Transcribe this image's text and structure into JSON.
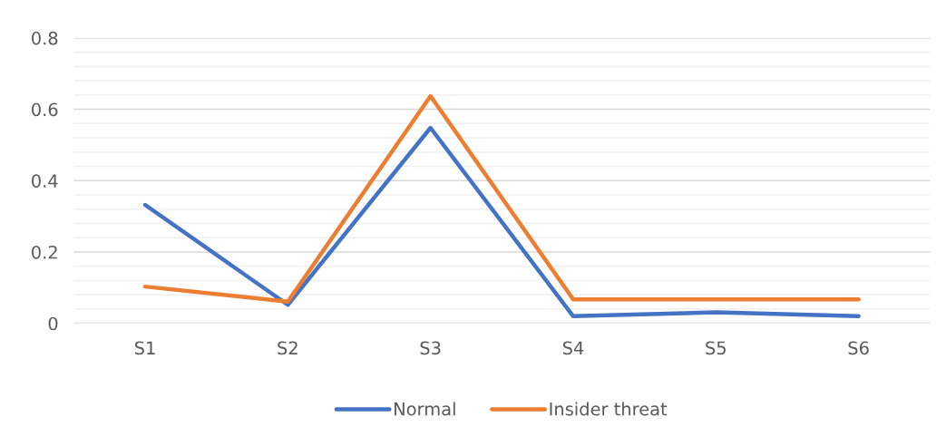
{
  "chart_data": {
    "type": "line",
    "categories": [
      "S1",
      "S2",
      "S3",
      "S4",
      "S5",
      "S6"
    ],
    "series": [
      {
        "name": "Normal",
        "color": "#4472c4",
        "values": [
          0.332,
          0.052,
          0.548,
          0.02,
          0.031,
          0.02
        ]
      },
      {
        "name": "Insider threat",
        "color": "#ed7d31",
        "values": [
          0.103,
          0.061,
          0.637,
          0.067,
          0.067,
          0.067
        ]
      }
    ],
    "ylim": [
      0,
      0.8
    ],
    "yticks": [
      0,
      {
        "value": 0.04,
        "label": null
      },
      {
        "value": 0.08,
        "label": null
      },
      {
        "value": 0.12,
        "label": null
      },
      {
        "value": 0.16,
        "label": null
      },
      {
        "value": 0.2,
        "label": "0.2"
      },
      {
        "value": 0.24,
        "label": null
      },
      {
        "value": 0.28,
        "label": null
      },
      {
        "value": 0.32,
        "label": null
      },
      {
        "value": 0.36,
        "label": null
      },
      {
        "value": 0.4,
        "label": "0.4"
      },
      {
        "value": 0.44,
        "label": null
      },
      {
        "value": 0.48,
        "label": null
      },
      {
        "value": 0.52,
        "label": null
      },
      {
        "value": 0.56,
        "label": null
      },
      {
        "value": 0.6,
        "label": "0.6"
      },
      {
        "value": 0.64,
        "label": null
      },
      {
        "value": 0.68,
        "label": null
      },
      {
        "value": 0.72,
        "label": null
      },
      {
        "value": 0.76,
        "label": null
      },
      {
        "value": 0.8,
        "label": "0.8"
      }
    ],
    "grid": "y",
    "legend": "bottom",
    "marker": "none",
    "line_style": "solid"
  }
}
